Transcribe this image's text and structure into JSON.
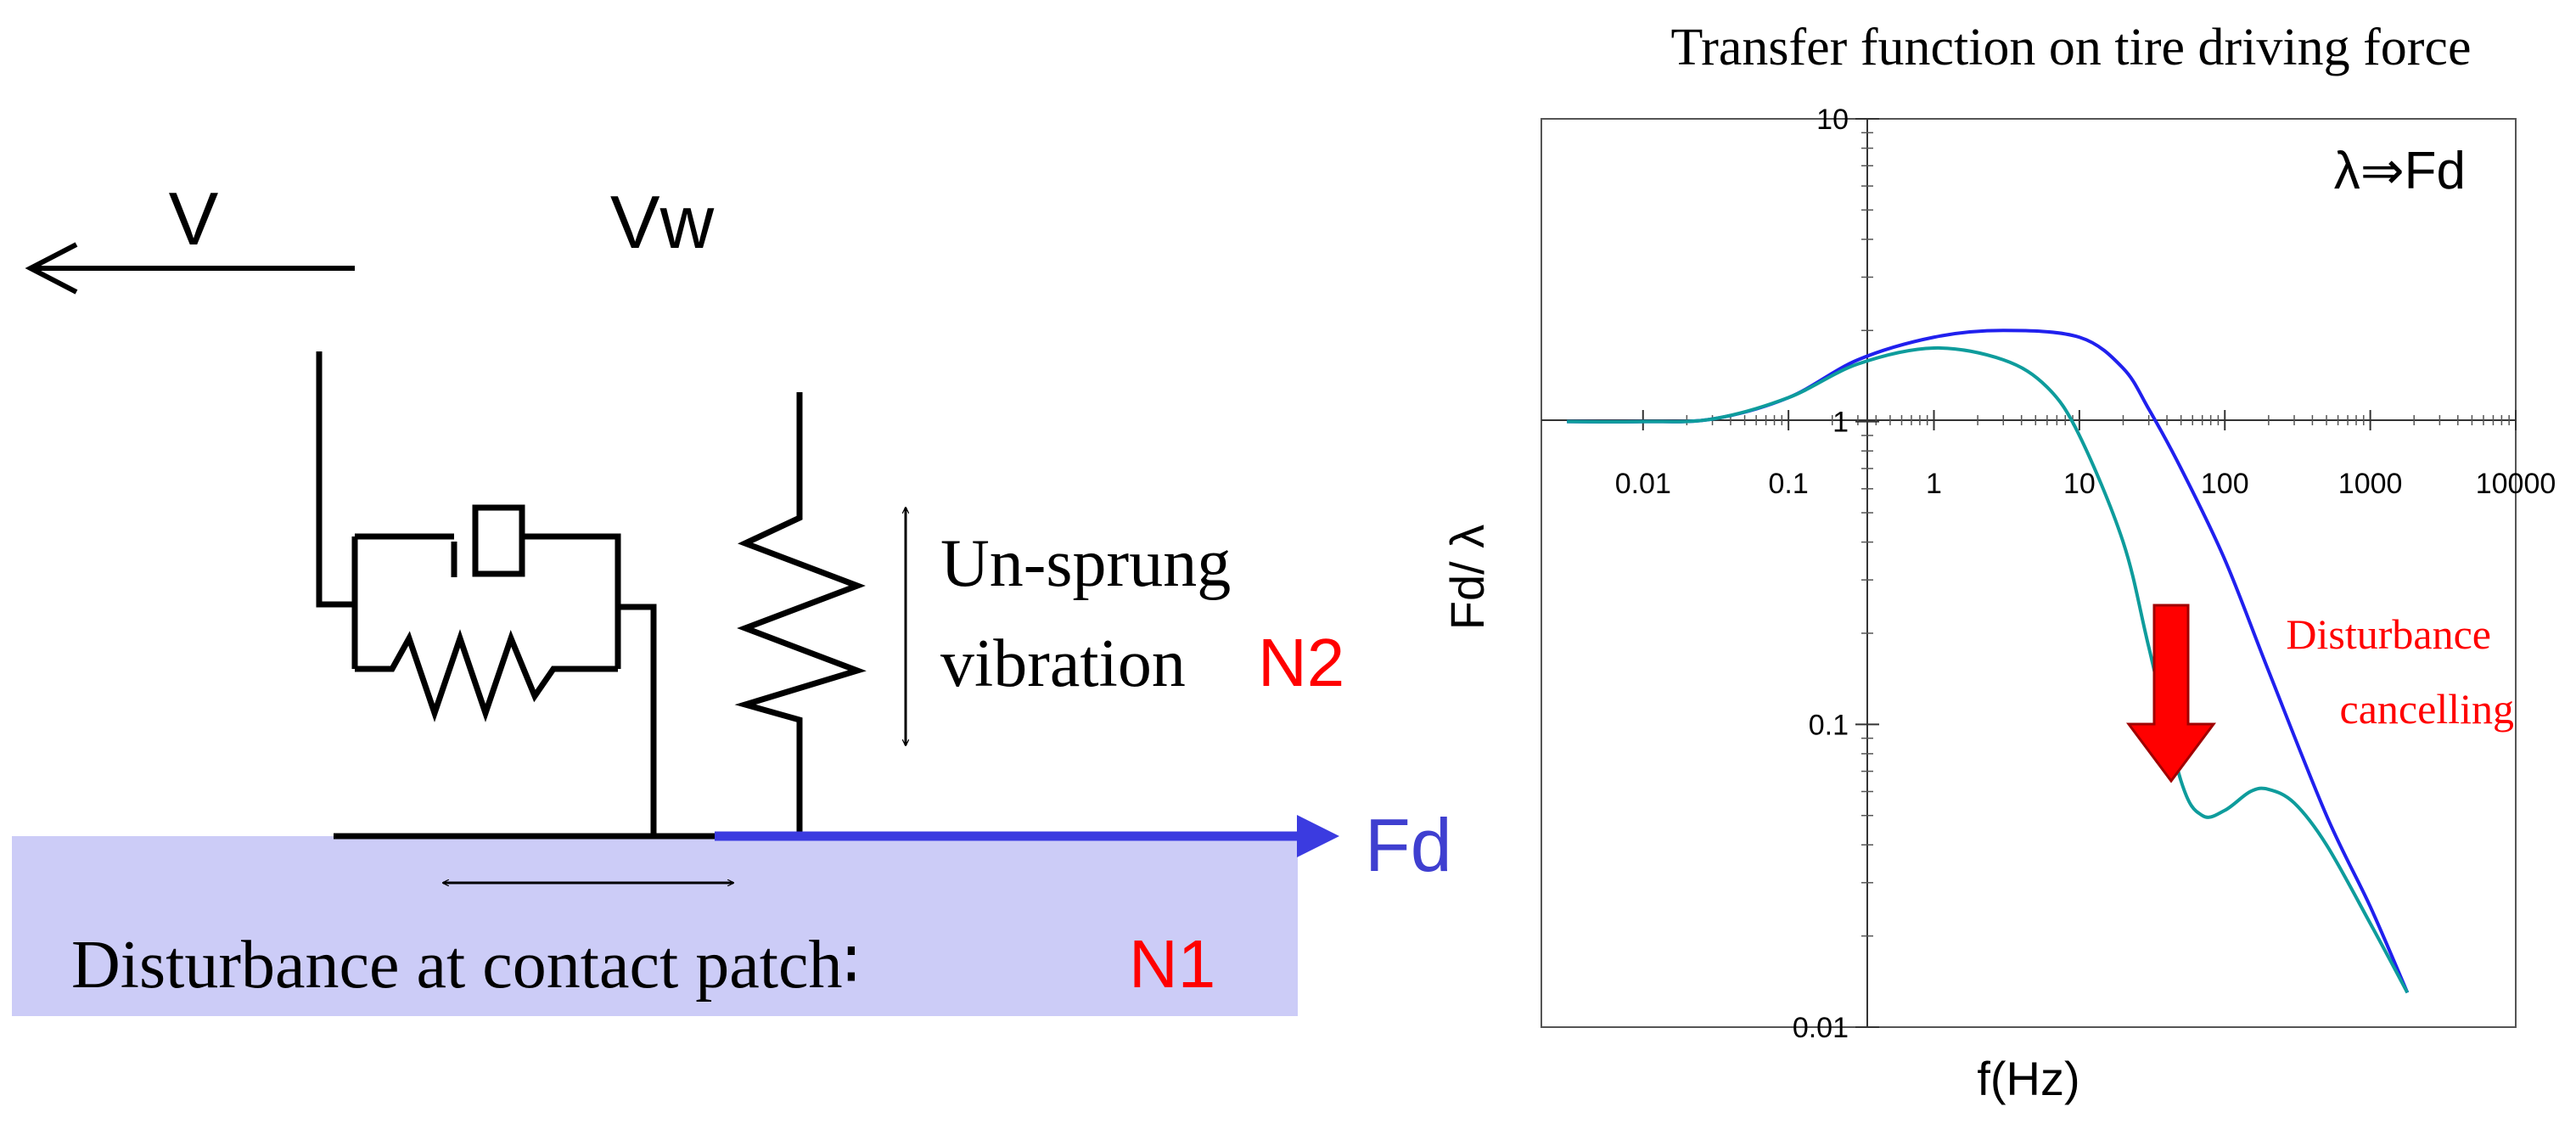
{
  "colors": {
    "ink": "#000000",
    "red": "#ff0000",
    "blue_label": "#3f3fd0",
    "patch_fill": "#ccccf7",
    "fd_line": "#3b3be0",
    "curve_before": "#2020ee",
    "curve_after": "#0e9c9c"
  },
  "left": {
    "v_label": "V",
    "vw_label": "Vw",
    "unsprung_line1": "Un-sprung",
    "unsprung_line2": "vibration",
    "n2_label": "N2",
    "fd_label": "Fd",
    "patch_text": "Disturbance at contact patch∶",
    "n1_label": "N1"
  },
  "chart_data": {
    "type": "line",
    "title": "Transfer function on tire driving force",
    "annotation": "λ⇒Fd",
    "xlabel": "f(Hz)",
    "ylabel": "Fd/ λ",
    "x_scale": "log",
    "y_scale": "log",
    "xlim": [
      0.002,
      10000
    ],
    "ylim": [
      0.01,
      10
    ],
    "x_ticks": [
      "0.01",
      "0.1",
      "1",
      "10",
      "100",
      "1000",
      "10000"
    ],
    "y_ticks": [
      "10",
      "1",
      "0.1",
      "0.01"
    ],
    "grid": false,
    "series": [
      {
        "color": "#2020ee",
        "points": [
          [
            0.003,
            1.0
          ],
          [
            0.01,
            1.0
          ],
          [
            0.03,
            1.02
          ],
          [
            0.1,
            1.2
          ],
          [
            0.3,
            1.6
          ],
          [
            1,
            1.9
          ],
          [
            3,
            2.0
          ],
          [
            10,
            1.9
          ],
          [
            20,
            1.5
          ],
          [
            30,
            1.1
          ],
          [
            50,
            0.7
          ],
          [
            100,
            0.35
          ],
          [
            200,
            0.15
          ],
          [
            500,
            0.05
          ],
          [
            1000,
            0.025
          ],
          [
            1800,
            0.013
          ]
        ]
      },
      {
        "color": "#0e9c9c",
        "points": [
          [
            0.003,
            1.0
          ],
          [
            0.01,
            1.0
          ],
          [
            0.03,
            1.02
          ],
          [
            0.1,
            1.2
          ],
          [
            0.3,
            1.55
          ],
          [
            1,
            1.75
          ],
          [
            3,
            1.6
          ],
          [
            6,
            1.3
          ],
          [
            10,
            0.9
          ],
          [
            20,
            0.4
          ],
          [
            30,
            0.18
          ],
          [
            50,
            0.065
          ],
          [
            70,
            0.05
          ],
          [
            100,
            0.052
          ],
          [
            150,
            0.06
          ],
          [
            200,
            0.061
          ],
          [
            300,
            0.055
          ],
          [
            500,
            0.04
          ],
          [
            1000,
            0.022
          ],
          [
            1800,
            0.013
          ]
        ]
      }
    ],
    "arrow_label_line1": "Disturbance",
    "arrow_label_line2": "cancelling"
  }
}
